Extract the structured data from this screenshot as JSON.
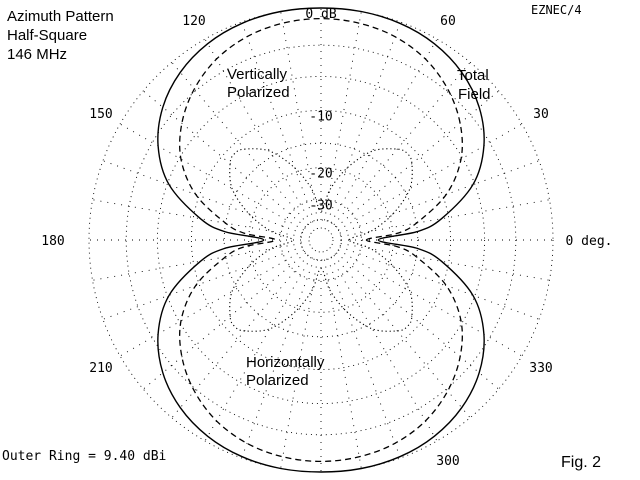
{
  "header": {
    "title_lines": [
      "Azimuth Pattern",
      "Half-Square",
      "146 MHz"
    ],
    "program": "EZNEC/4",
    "figure": "Fig. 2"
  },
  "footer": {
    "outer_ring": "Outer Ring = 9.40 dBi"
  },
  "annotations": {
    "vertical": [
      "Vertically",
      "Polarized"
    ],
    "total": [
      "Total",
      "Field"
    ],
    "horizontal": [
      "Horizontally",
      "Polarized"
    ]
  },
  "chart_data": {
    "type": "polar",
    "outer_ring_dbi": 9.4,
    "rings": [
      {
        "db": 0,
        "label": "0 dB"
      },
      {
        "db": -10,
        "label": "-10"
      },
      {
        "db": -20,
        "label": "-20"
      },
      {
        "db": -30,
        "label": "-30"
      }
    ],
    "angle_labels": [
      {
        "deg": 0,
        "label": "0 deg."
      },
      {
        "deg": 30,
        "label": "30"
      },
      {
        "deg": 60,
        "label": "60"
      },
      {
        "deg": 120,
        "label": "120"
      },
      {
        "deg": 150,
        "label": "150"
      },
      {
        "deg": 180,
        "label": "180"
      },
      {
        "deg": 210,
        "label": "210"
      },
      {
        "deg": 300,
        "label": "300"
      },
      {
        "deg": 330,
        "label": "330"
      }
    ],
    "series": [
      {
        "name": "Total Field",
        "style": "solid",
        "angles_deg": [
          0,
          5,
          10,
          20,
          30,
          40,
          50,
          60,
          70,
          80,
          90,
          100,
          110,
          120,
          130,
          140,
          150,
          160,
          170,
          175,
          180,
          185,
          190,
          200,
          210,
          220,
          230,
          240,
          250,
          260,
          270,
          280,
          290,
          300,
          310,
          320,
          330,
          340,
          350,
          355
        ],
        "db": [
          -24,
          -15,
          -11,
          -6.2,
          -3.6,
          -2.0,
          -1.0,
          -0.4,
          -0.1,
          0,
          0,
          0,
          -0.1,
          -0.4,
          -1.0,
          -2.0,
          -3.6,
          -6.2,
          -11,
          -15,
          -24,
          -15,
          -11,
          -6.2,
          -3.6,
          -2.0,
          -1.0,
          -0.4,
          -0.1,
          0,
          0,
          0,
          -0.1,
          -0.4,
          -1.0,
          -2.0,
          -3.6,
          -6.2,
          -11,
          -15
        ]
      },
      {
        "name": "Vertically Polarized",
        "style": "dashed",
        "angles_deg": [
          0,
          5,
          10,
          20,
          30,
          40,
          50,
          60,
          70,
          80,
          90,
          100,
          110,
          120,
          130,
          140,
          150,
          160,
          170,
          175,
          180,
          185,
          190,
          200,
          210,
          220,
          230,
          240,
          250,
          260,
          270,
          280,
          290,
          300,
          310,
          320,
          330,
          340,
          350,
          355
        ],
        "db": [
          -28,
          -19,
          -15,
          -9.5,
          -6.2,
          -4.2,
          -2.8,
          -1.8,
          -1.2,
          -0.9,
          -0.8,
          -0.9,
          -1.2,
          -1.8,
          -2.8,
          -4.2,
          -6.2,
          -9.5,
          -15,
          -19,
          -28,
          -19,
          -15,
          -9.5,
          -6.2,
          -4.2,
          -2.8,
          -1.8,
          -1.2,
          -0.9,
          -0.8,
          -0.9,
          -1.2,
          -1.8,
          -2.8,
          -4.2,
          -6.2,
          -9.5,
          -15,
          -19
        ]
      },
      {
        "name": "Horizontally Polarized",
        "style": "dotted",
        "angles_deg": [
          0,
          10,
          20,
          30,
          40,
          45,
          50,
          60,
          70,
          80,
          90,
          100,
          110,
          120,
          130,
          135,
          140,
          150,
          160,
          170,
          180,
          190,
          200,
          210,
          220,
          225,
          230,
          240,
          250,
          260,
          270,
          280,
          290,
          300,
          310,
          315,
          320,
          330,
          340,
          350
        ],
        "db": [
          -36,
          -26,
          -19,
          -14,
          -11.5,
          -11,
          -11.5,
          -14,
          -19,
          -26,
          -36,
          -26,
          -19,
          -14,
          -11.5,
          -11,
          -11.5,
          -14,
          -19,
          -26,
          -36,
          -26,
          -19,
          -14,
          -11.5,
          -11,
          -11.5,
          -14,
          -19,
          -26,
          -36,
          -26,
          -19,
          -14,
          -11.5,
          -11,
          -11.5,
          -14,
          -19,
          -26
        ]
      }
    ]
  }
}
